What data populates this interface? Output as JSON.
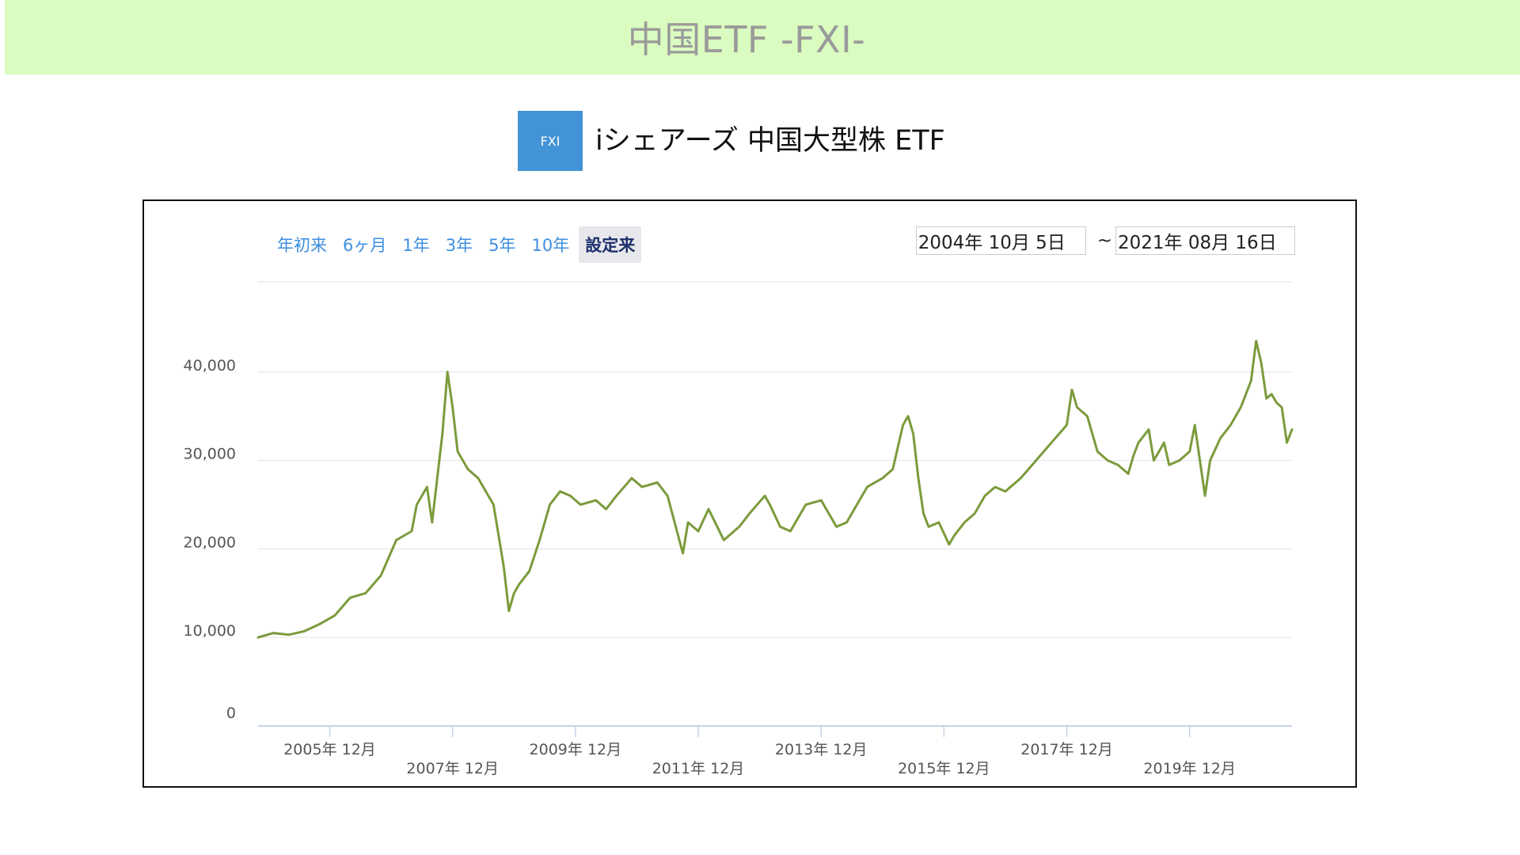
{
  "page": {
    "banner_title": "中国ETF -FXI-",
    "ticker": "FXI",
    "fund_name": "iシェアーズ 中国大型株 ETF",
    "accent_color": "#4394d6",
    "banner_color": "#dafcc0"
  },
  "range_selector": {
    "buttons": [
      "年初来",
      "6ヶ月",
      "1年",
      "3年",
      "5年",
      "10年",
      "設定来"
    ],
    "active": "設定来",
    "from_date": "2004年 10月 5日",
    "separator": "~",
    "to_date": "2021年 08月 16日"
  },
  "chart_data": {
    "type": "line",
    "title": "",
    "xlabel": "",
    "ylabel": "",
    "ylim": [
      0,
      50000
    ],
    "y_ticks": [
      0,
      10000,
      20000,
      30000,
      40000
    ],
    "y_tick_labels": [
      "0",
      "10,000",
      "20,000",
      "30,000",
      "40,000"
    ],
    "x_ticks": [
      "2005年 12月",
      "2007年 12月",
      "2009年 12月",
      "2011年 12月",
      "2013年 12月",
      "2015年 12月",
      "2017年 12月",
      "2019年 12月"
    ],
    "x_tick_dates": [
      "2005-12",
      "2007-12",
      "2009-12",
      "2011-12",
      "2013-12",
      "2015-12",
      "2017-12",
      "2019-12"
    ],
    "line_color": "#7b9b3c",
    "grid": true,
    "series": [
      {
        "name": "",
        "x": [
          "2004-10",
          "2005-01",
          "2005-04",
          "2005-07",
          "2005-10",
          "2006-01",
          "2006-04",
          "2006-07",
          "2006-10",
          "2007-01",
          "2007-04",
          "2007-05",
          "2007-07",
          "2007-08",
          "2007-10",
          "2007-11",
          "2007-12",
          "2008-01",
          "2008-03",
          "2008-05",
          "2008-08",
          "2008-10",
          "2008-11",
          "2008-12",
          "2009-01",
          "2009-03",
          "2009-05",
          "2009-07",
          "2009-09",
          "2009-11",
          "2010-01",
          "2010-04",
          "2010-06",
          "2010-08",
          "2010-11",
          "2011-01",
          "2011-04",
          "2011-06",
          "2011-09",
          "2011-10",
          "2011-12",
          "2012-02",
          "2012-05",
          "2012-08",
          "2012-10",
          "2013-01",
          "2013-02",
          "2013-04",
          "2013-06",
          "2013-09",
          "2013-12",
          "2014-03",
          "2014-05",
          "2014-07",
          "2014-09",
          "2014-12",
          "2015-02",
          "2015-04",
          "2015-05",
          "2015-06",
          "2015-07",
          "2015-08",
          "2015-09",
          "2015-11",
          "2016-01",
          "2016-02",
          "2016-04",
          "2016-06",
          "2016-08",
          "2016-10",
          "2016-12",
          "2017-03",
          "2017-06",
          "2017-09",
          "2017-12",
          "2018-01",
          "2018-02",
          "2018-04",
          "2018-06",
          "2018-08",
          "2018-10",
          "2018-12",
          "2019-01",
          "2019-02",
          "2019-04",
          "2019-05",
          "2019-07",
          "2019-08",
          "2019-10",
          "2019-12",
          "2020-01",
          "2020-03",
          "2020-04",
          "2020-06",
          "2020-08",
          "2020-10",
          "2020-12",
          "2021-01",
          "2021-02",
          "2021-03",
          "2021-04",
          "2021-05",
          "2021-06",
          "2021-07",
          "2021-08"
        ],
        "values": [
          10000,
          10500,
          10300,
          10700,
          11500,
          12500,
          14500,
          15000,
          17000,
          21000,
          22000,
          25000,
          27000,
          23000,
          33000,
          40000,
          36000,
          31000,
          29000,
          28000,
          25000,
          18000,
          13000,
          15000,
          16000,
          17500,
          21000,
          25000,
          26500,
          26000,
          25000,
          25500,
          24500,
          26000,
          28000,
          27000,
          27500,
          26000,
          19500,
          23000,
          22000,
          24500,
          21000,
          22500,
          24000,
          26000,
          25000,
          22500,
          22000,
          25000,
          25500,
          22500,
          23000,
          25000,
          27000,
          28000,
          29000,
          34000,
          35000,
          33000,
          28000,
          24000,
          22500,
          23000,
          20500,
          21500,
          23000,
          24000,
          26000,
          27000,
          26500,
          28000,
          30000,
          32000,
          34000,
          38000,
          36000,
          35000,
          31000,
          30000,
          29500,
          28500,
          30500,
          32000,
          33500,
          30000,
          32000,
          29500,
          30000,
          31000,
          34000,
          26000,
          30000,
          32500,
          34000,
          36000,
          39000,
          43500,
          41000,
          37000,
          37500,
          36500,
          36000,
          32000,
          33500
        ]
      }
    ]
  }
}
